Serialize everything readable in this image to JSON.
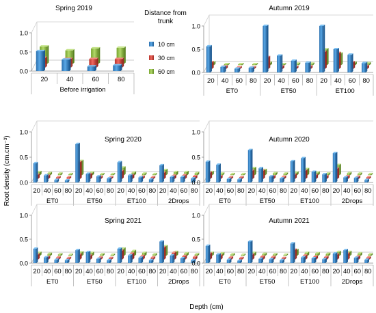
{
  "figure": {
    "y_axis_label": "Root density (cm.cm⁻³)",
    "x_axis_label": "Depth (cm)"
  },
  "legend": {
    "title_line1": "Distance from",
    "title_line2": "trunk",
    "items": [
      {
        "label": "10 cm",
        "color": "#2f7fc4"
      },
      {
        "label": "30 cm",
        "color": "#d63c34"
      },
      {
        "label": "60 cm",
        "color": "#8fbf3a"
      }
    ]
  },
  "chart_data": [
    {
      "type": "bar",
      "title": "Spring 2019",
      "ylim": [
        0,
        1
      ],
      "yticks": [
        "0.0",
        "0.5",
        "1.0"
      ],
      "depths": [
        "20",
        "40",
        "60",
        "80"
      ],
      "groups": [
        {
          "name": "Before irrigation",
          "values": [
            [
              0.52,
              0.25,
              0.45
            ],
            [
              0.3,
              0.22,
              0.35
            ],
            [
              0.12,
              0.22,
              0.4
            ],
            [
              0.15,
              0.22,
              0.42
            ]
          ]
        }
      ]
    },
    {
      "type": "bar",
      "title": "Autumn 2019",
      "ylim": [
        0,
        1
      ],
      "yticks": [
        "0.0",
        "0.5",
        "1.0"
      ],
      "depths": [
        "20",
        "40",
        "60",
        "80"
      ],
      "groups": [
        {
          "name": "ET0",
          "values": [
            [
              0.56,
              0.14,
              0.06
            ],
            [
              0.12,
              0.05,
              0.02
            ],
            [
              0.08,
              0.03,
              0.02
            ],
            [
              0.1,
              0.03,
              0.02
            ]
          ]
        },
        {
          "name": "ET50",
          "values": [
            [
              1.0,
              0.25,
              0.05
            ],
            [
              0.36,
              0.05,
              0.02
            ],
            [
              0.25,
              0.04,
              0.03
            ],
            [
              0.21,
              0.05,
              0.03
            ]
          ]
        },
        {
          "name": "ET100",
          "values": [
            [
              1.0,
              0.36,
              0.34
            ],
            [
              0.5,
              0.34,
              0.25
            ],
            [
              0.38,
              0.14,
              0.05
            ],
            [
              0.2,
              0.06,
              0.04
            ]
          ]
        }
      ]
    },
    {
      "type": "bar",
      "title": "Spring 2020",
      "ylim": [
        0,
        1
      ],
      "yticks": [
        "0.0",
        "0.5",
        "1.0"
      ],
      "depths": [
        "20",
        "40",
        "60",
        "80"
      ],
      "groups": [
        {
          "name": "ET0",
          "values": [
            [
              0.38,
              0.08,
              0.06
            ],
            [
              0.14,
              0.06,
              0.04
            ],
            [
              0.05,
              0.03,
              0.03
            ],
            [
              0.04,
              0.03,
              0.02
            ]
          ]
        },
        {
          "name": "ET50",
          "values": [
            [
              0.76,
              0.33,
              0.28
            ],
            [
              0.17,
              0.09,
              0.05
            ],
            [
              0.12,
              0.04,
              0.02
            ],
            [
              0.08,
              0.03,
              0.02
            ]
          ]
        },
        {
          "name": "ET100",
          "values": [
            [
              0.4,
              0.15,
              0.15
            ],
            [
              0.14,
              0.07,
              0.05
            ],
            [
              0.1,
              0.04,
              0.03
            ],
            [
              0.06,
              0.03,
              0.02
            ]
          ]
        },
        {
          "name": "2Drops",
          "values": [
            [
              0.34,
              0.12,
              0.1
            ],
            [
              0.11,
              0.06,
              0.06
            ],
            [
              0.11,
              0.07,
              0.06
            ],
            [
              0.08,
              0.05,
              0.04
            ]
          ]
        }
      ]
    },
    {
      "type": "bar",
      "title": "Autumn 2020",
      "ylim": [
        0,
        1
      ],
      "yticks": [
        "0.0",
        "0.5",
        "1.0"
      ],
      "depths": [
        "20",
        "40",
        "60",
        "80"
      ],
      "groups": [
        {
          "name": "ET0",
          "values": [
            [
              0.41,
              0.12,
              0.06
            ],
            [
              0.35,
              0.05,
              0.03
            ],
            [
              0.07,
              0.03,
              0.02
            ],
            [
              0.06,
              0.03,
              0.02
            ]
          ]
        },
        {
          "name": "ET50",
          "values": [
            [
              0.64,
              0.16,
              0.14
            ],
            [
              0.28,
              0.16,
              0.1
            ],
            [
              0.12,
              0.05,
              0.04
            ],
            [
              0.08,
              0.04,
              0.03
            ]
          ]
        },
        {
          "name": "ET100",
          "values": [
            [
              0.42,
              0.08,
              0.05
            ],
            [
              0.48,
              0.16,
              0.12
            ],
            [
              0.21,
              0.07,
              0.05
            ],
            [
              0.16,
              0.05,
              0.03
            ]
          ]
        },
        {
          "name": "2Drops",
          "values": [
            [
              0.58,
              0.2,
              0.2
            ],
            [
              0.1,
              0.05,
              0.04
            ],
            [
              0.09,
              0.04,
              0.03
            ],
            [
              0.05,
              0.03,
              0.02
            ]
          ]
        }
      ]
    },
    {
      "type": "bar",
      "title": "Spring 2021",
      "ylim": [
        0,
        1
      ],
      "yticks": [
        "0.0",
        "0.5",
        "1.0"
      ],
      "depths": [
        "20",
        "40",
        "60",
        "80"
      ],
      "groups": [
        {
          "name": "ET0",
          "values": [
            [
              0.3,
              0.1,
              0.06
            ],
            [
              0.12,
              0.05,
              0.04
            ],
            [
              0.07,
              0.04,
              0.03
            ],
            [
              0.06,
              0.03,
              0.02
            ]
          ]
        },
        {
          "name": "ET50",
          "values": [
            [
              0.27,
              0.1,
              0.07
            ],
            [
              0.23,
              0.08,
              0.06
            ],
            [
              0.09,
              0.04,
              0.03
            ],
            [
              0.06,
              0.03,
              0.02
            ]
          ]
        },
        {
          "name": "ET100",
          "values": [
            [
              0.3,
              0.18,
              0.15
            ],
            [
              0.16,
              0.12,
              0.1
            ],
            [
              0.11,
              0.07,
              0.06
            ],
            [
              0.06,
              0.04,
              0.03
            ]
          ]
        },
        {
          "name": "2Drops",
          "values": [
            [
              0.45,
              0.25,
              0.2
            ],
            [
              0.16,
              0.14,
              0.08
            ],
            [
              0.1,
              0.07,
              0.05
            ],
            [
              0.06,
              0.05,
              0.03
            ]
          ]
        }
      ]
    },
    {
      "type": "bar",
      "title": "Autumn 2021",
      "ylim": [
        0,
        1
      ],
      "yticks": [
        "0.0",
        "0.5",
        "1.0"
      ],
      "depths": [
        "20",
        "40",
        "60",
        "80"
      ],
      "groups": [
        {
          "name": "ET0",
          "values": [
            [
              0.36,
              0.12,
              0.06
            ],
            [
              0.18,
              0.08,
              0.05
            ],
            [
              0.07,
              0.04,
              0.03
            ],
            [
              0.05,
              0.03,
              0.02
            ]
          ]
        },
        {
          "name": "ET50",
          "values": [
            [
              0.45,
              0.1,
              0.06
            ],
            [
              0.09,
              0.06,
              0.04
            ],
            [
              0.08,
              0.05,
              0.03
            ],
            [
              0.06,
              0.03,
              0.02
            ]
          ]
        },
        {
          "name": "ET100",
          "values": [
            [
              0.41,
              0.2,
              0.12
            ],
            [
              0.12,
              0.08,
              0.06
            ],
            [
              0.1,
              0.06,
              0.05
            ],
            [
              0.08,
              0.05,
              0.04
            ]
          ]
        },
        {
          "name": "2Drops",
          "values": [
            [
              0.2,
              0.1,
              0.08
            ],
            [
              0.27,
              0.12,
              0.08
            ],
            [
              0.11,
              0.06,
              0.05
            ],
            [
              0.07,
              0.04,
              0.03
            ]
          ]
        }
      ]
    }
  ]
}
